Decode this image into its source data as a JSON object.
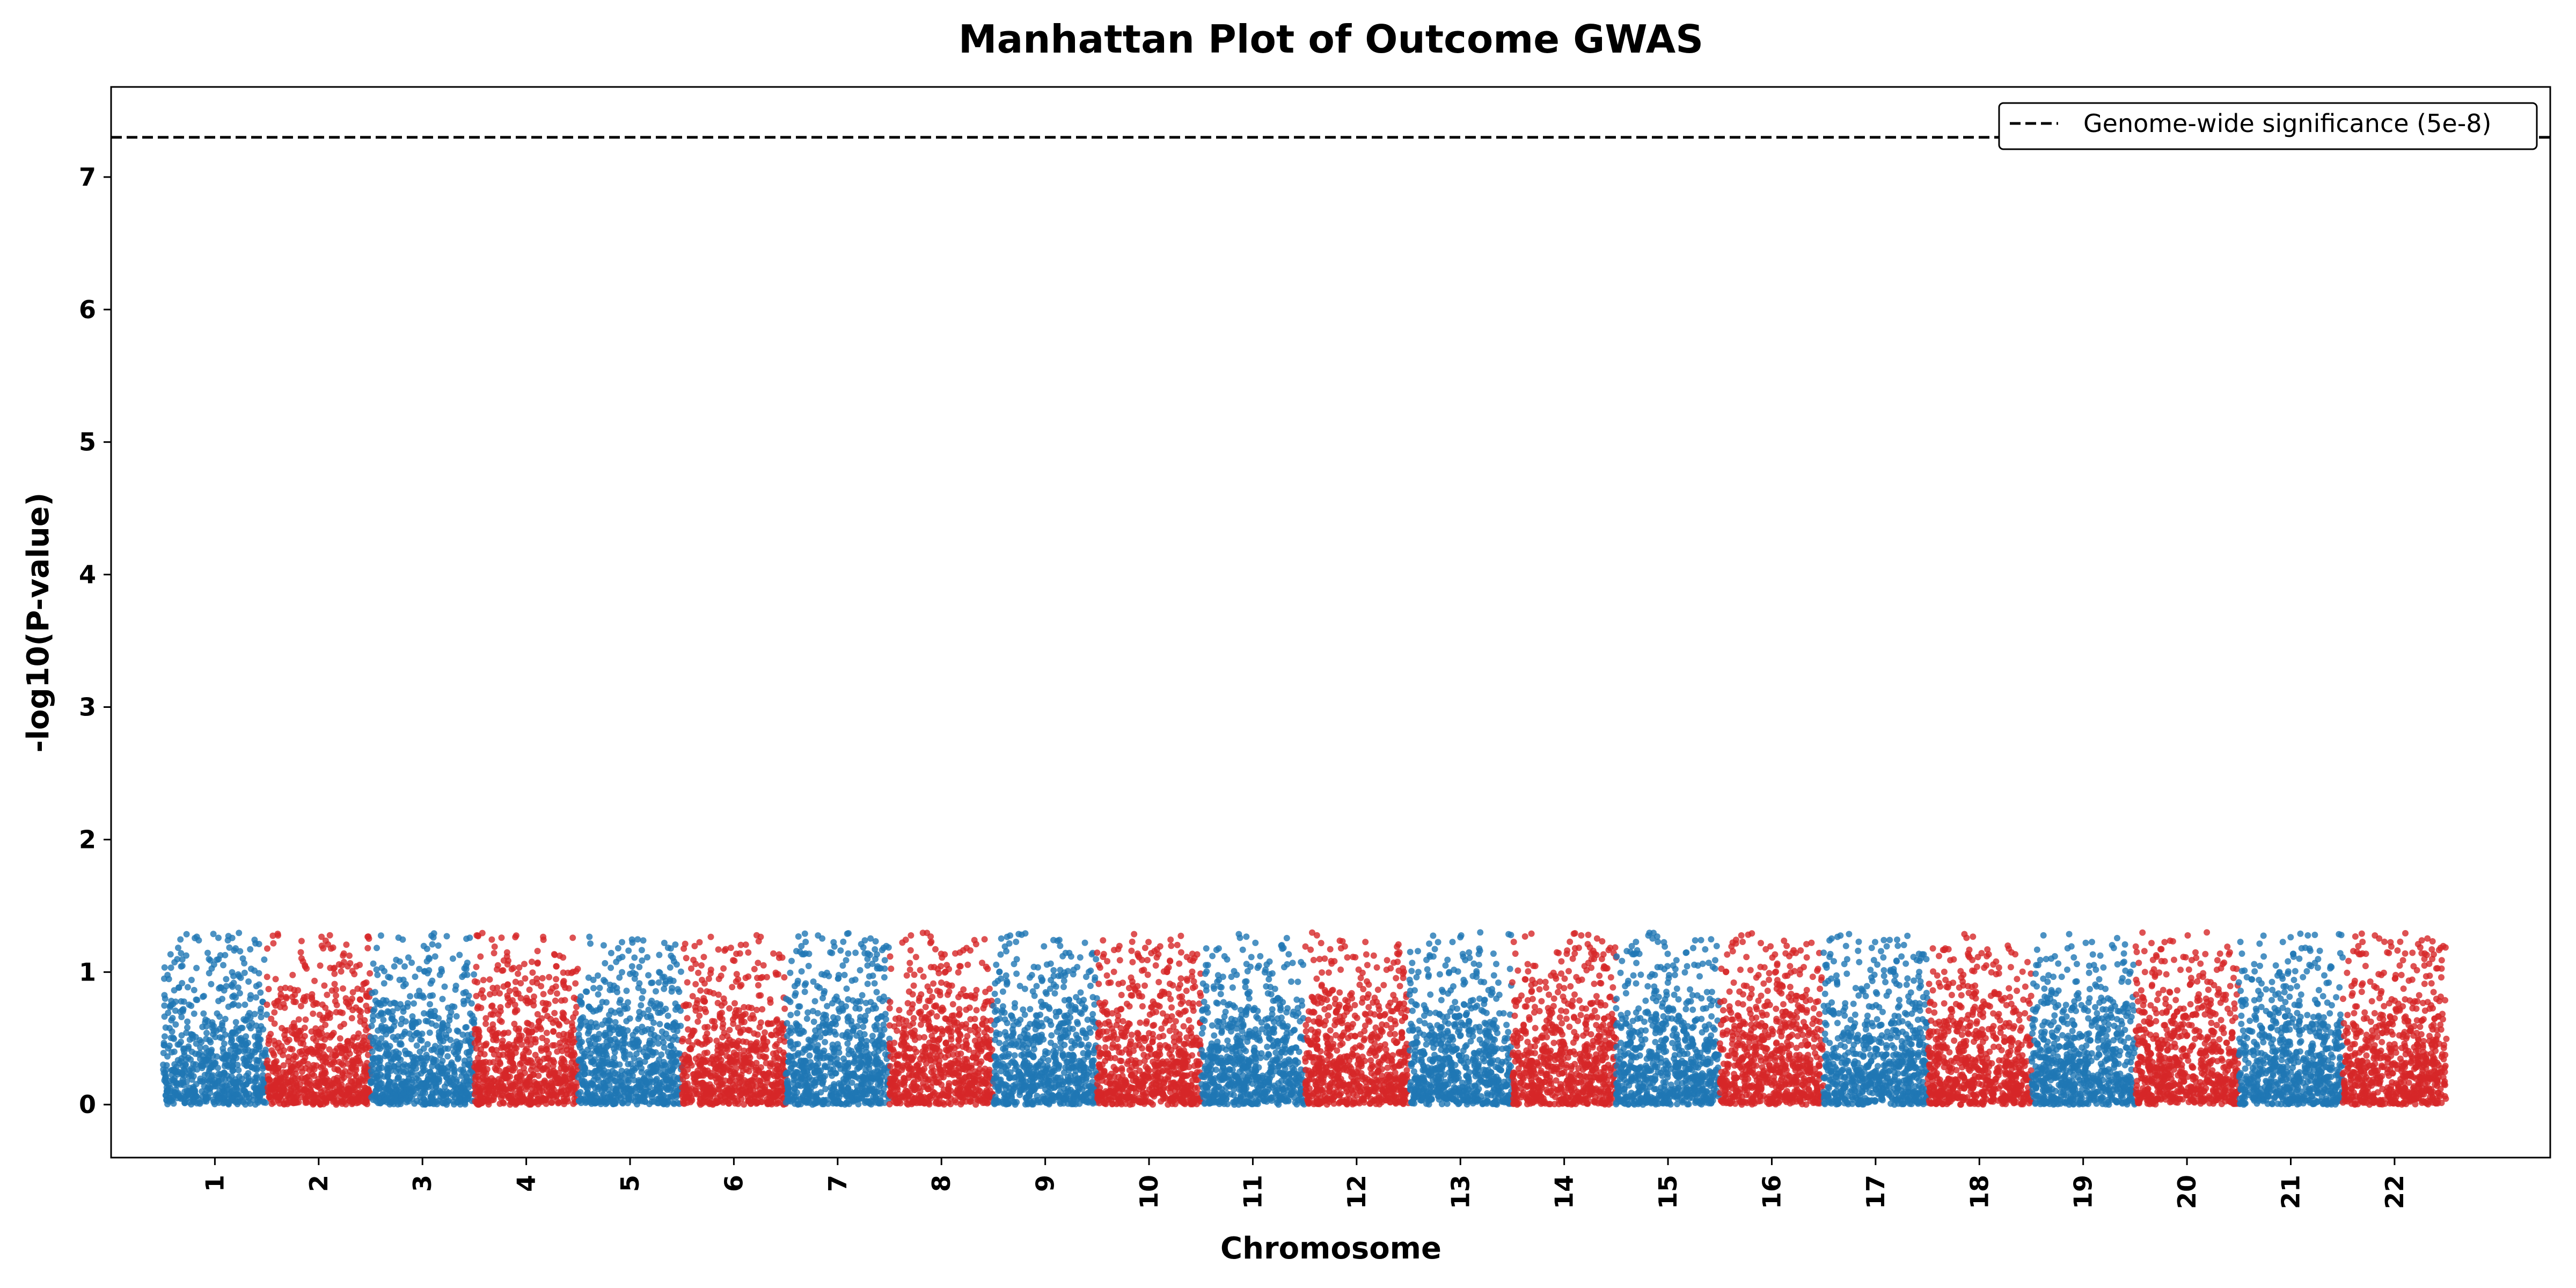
{
  "chart_data": {
    "type": "scatter",
    "title": "Manhattan Plot of Outcome GWAS",
    "xlabel": "Chromosome",
    "ylabel": "-log10(P-value)",
    "ylim": [
      -0.4,
      7.68
    ],
    "yticks": [
      0,
      1,
      2,
      3,
      4,
      5,
      6,
      7
    ],
    "categories": [
      "1",
      "2",
      "3",
      "4",
      "5",
      "6",
      "7",
      "8",
      "9",
      "10",
      "11",
      "12",
      "13",
      "14",
      "15",
      "16",
      "17",
      "18",
      "19",
      "20",
      "21",
      "22"
    ],
    "colors": [
      "#1f77b4",
      "#d62728"
    ],
    "point_range": {
      "min": 0.0,
      "max": 1.3
    },
    "points_per_chromosome": 700,
    "threshold": {
      "label": "Genome-wide significance (5e-8)",
      "p_value": 5e-08,
      "value": 7.3,
      "style": "dashed",
      "color": "#000000"
    },
    "legend_position": "upper-right",
    "grid": false
  }
}
